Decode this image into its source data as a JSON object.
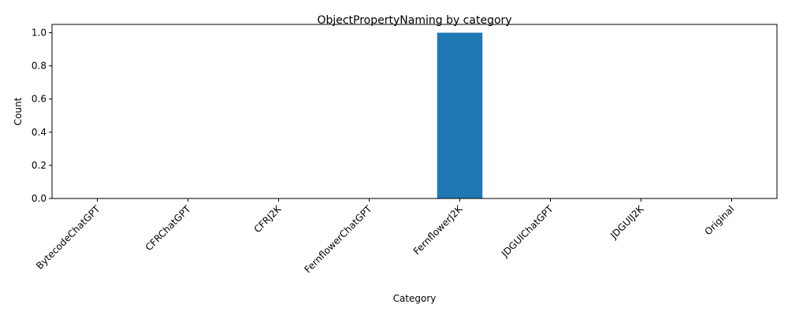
{
  "chart_data": {
    "type": "bar",
    "title": "ObjectPropertyNaming by category",
    "xlabel": "Category",
    "ylabel": "Count",
    "categories": [
      "BytecodeChatGPT",
      "CFRChatGPT",
      "CFRJ2K",
      "FernflowerChatGPT",
      "FernflowerJ2K",
      "JDGUIChatGPT",
      "JDGUIJ2K",
      "Original"
    ],
    "values": [
      0,
      0,
      0,
      0,
      1,
      0,
      0,
      0
    ],
    "ylim": [
      0,
      1.05
    ],
    "yticks": [
      0.0,
      0.2,
      0.4,
      0.6,
      0.8,
      1.0
    ],
    "ytick_labels": [
      "0.0",
      "0.2",
      "0.4",
      "0.6",
      "0.8",
      "1.0"
    ],
    "bar_color": "#1f77b4",
    "grid": false,
    "legend": "none"
  }
}
